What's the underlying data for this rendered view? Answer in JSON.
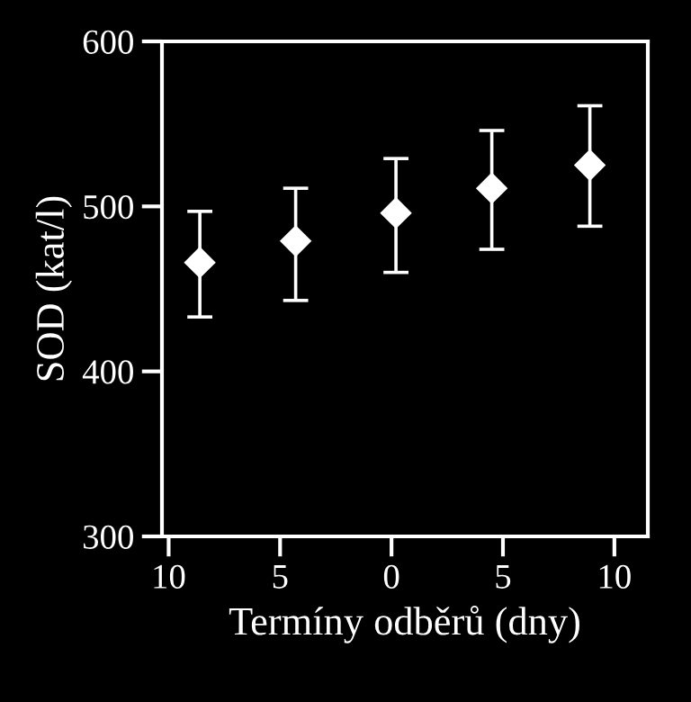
{
  "chart_data": {
    "type": "scatter",
    "xlabel": "Termíny odběrů (dny)",
    "ylabel": "SOD (kat/l)",
    "x": [
      -8.6,
      -4.3,
      0.2,
      4.5,
      8.9
    ],
    "values": [
      466,
      479,
      496,
      511,
      525
    ],
    "errors": [
      [
        433,
        497
      ],
      [
        443,
        511
      ],
      [
        460,
        529
      ],
      [
        474,
        546
      ],
      [
        488,
        561
      ]
    ],
    "color": "#ffffff",
    "marker": "diamond",
    "xlim": [
      -10.3,
      11.5
    ],
    "xticks": [
      {
        "value": -10,
        "label": "10"
      },
      {
        "value": -5,
        "label": "5"
      },
      0,
      5,
      10
    ],
    "ylim": [
      300,
      600
    ],
    "yticks": [
      300,
      400,
      500,
      600
    ],
    "grid": false,
    "legend": false
  }
}
